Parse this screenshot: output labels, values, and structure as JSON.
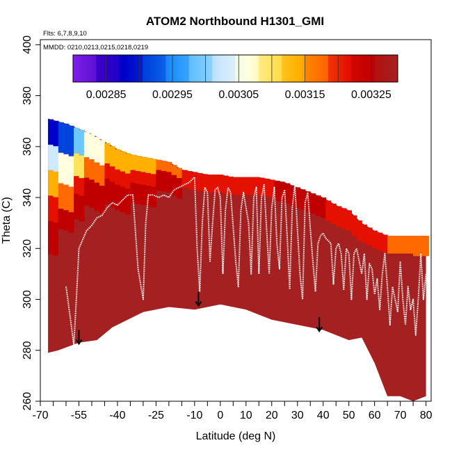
{
  "chart_data": {
    "type": "heatmap",
    "title": "ATOM2 Northbound H1301_GMI",
    "flights_label": "Flts: 6,7,8,9,10",
    "dates_label": "MMDD: 0210,0213,0215,0218,0219",
    "xlabel": "Latitude (deg N)",
    "ylabel": "Theta (C)",
    "xlim": [
      -70,
      82
    ],
    "ylim": [
      260,
      402
    ],
    "x_tick_labels": [
      "-70",
      "-55",
      "-40",
      "-25",
      "-10",
      "0",
      "10",
      "20",
      "30",
      "40",
      "50",
      "60",
      "70",
      "80"
    ],
    "x_tick_positions": [
      -70,
      -55,
      -40,
      -25,
      -10,
      0,
      10,
      20,
      30,
      40,
      50,
      60,
      70,
      80
    ],
    "x_minor_ticks": [
      -65,
      -60,
      -50,
      -45,
      -35,
      -30,
      -20,
      -15,
      -5,
      5,
      15,
      25,
      35,
      45,
      55,
      65,
      75
    ],
    "y_ticks": [
      260,
      280,
      300,
      320,
      340,
      360,
      380,
      400
    ],
    "colorbar": {
      "range": [
        0.0028,
        0.00329
      ],
      "tick_values": [
        0.00285,
        0.00295,
        0.00305,
        0.00315,
        0.00325
      ],
      "tick_labels": [
        "0.00285",
        "0.00295",
        "0.00305",
        "0.00315",
        "0.00325"
      ],
      "boundaries": [
        0.00285,
        0.0029,
        0.00295,
        0.003,
        0.00305,
        0.0031,
        0.00315,
        0.0032,
        0.00325
      ],
      "colors": [
        "#7f1fe6",
        "#3a00c8",
        "#0000c8",
        "#0044dd",
        "#1e90ff",
        "#6ec6ff",
        "#cfe9ff",
        "#ffffe0",
        "#ffe35c",
        "#ffb000",
        "#ff6a00",
        "#e41000",
        "#c00000",
        "#a52020"
      ]
    },
    "field": {
      "top_boundary": [
        [
          -67,
          371
        ],
        [
          -60,
          369
        ],
        [
          -55,
          367
        ],
        [
          -50,
          365
        ],
        [
          -45,
          362
        ],
        [
          -40,
          359
        ],
        [
          -35,
          357
        ],
        [
          -30,
          356
        ],
        [
          -25,
          355
        ],
        [
          -20,
          354
        ],
        [
          -15,
          351
        ],
        [
          -10,
          350
        ],
        [
          -5,
          349
        ],
        [
          0,
          349
        ],
        [
          5,
          348
        ],
        [
          10,
          348
        ],
        [
          15,
          348
        ],
        [
          20,
          347
        ],
        [
          25,
          346
        ],
        [
          30,
          344
        ],
        [
          35,
          342
        ],
        [
          40,
          340
        ],
        [
          45,
          337
        ],
        [
          50,
          335
        ],
        [
          55,
          330
        ],
        [
          60,
          327
        ],
        [
          65,
          325
        ],
        [
          70,
          325
        ],
        [
          75,
          325
        ],
        [
          80,
          325
        ]
      ],
      "bottom_boundary": [
        [
          -67,
          279
        ],
        [
          -63,
          280
        ],
        [
          -55,
          283
        ],
        [
          -48,
          284
        ],
        [
          -42,
          289
        ],
        [
          -30,
          295
        ],
        [
          -20,
          297
        ],
        [
          -10,
          296
        ],
        [
          0,
          298
        ],
        [
          10,
          296
        ],
        [
          20,
          292
        ],
        [
          30,
          290
        ],
        [
          40,
          288
        ],
        [
          50,
          284
        ],
        [
          55,
          285
        ],
        [
          60,
          275
        ],
        [
          65,
          262
        ],
        [
          70,
          262
        ],
        [
          75,
          260
        ],
        [
          80,
          262
        ]
      ],
      "values_by_latitude": [
        {
          "lat": -65,
          "layers": [
            [
              367,
              0.00283
            ],
            [
              357,
              0.0029
            ],
            [
              347,
              0.00303
            ],
            [
              337,
              0.00313
            ],
            [
              327,
              0.0032
            ],
            [
              318,
              0.00324
            ]
          ]
        },
        {
          "lat": -60,
          "layers": [
            [
              367,
              0.00284
            ],
            [
              355,
              0.00293
            ],
            [
              343,
              0.00307
            ],
            [
              333,
              0.00316
            ],
            [
              325,
              0.00322
            ],
            [
              318,
              0.00326
            ]
          ]
        },
        {
          "lat": -55,
          "layers": [
            [
              362,
              0.00293
            ],
            [
              352,
              0.003
            ],
            [
              343,
              0.0031
            ],
            [
              336,
              0.0032
            ],
            [
              330,
              0.00325
            ]
          ]
        },
        {
          "lat": -50,
          "layers": [
            [
              362,
              0.00298
            ],
            [
              352,
              0.00306
            ],
            [
              344,
              0.00316
            ],
            [
              337,
              0.00323
            ]
          ]
        },
        {
          "lat": -40,
          "layers": [
            [
              358,
              0.00302
            ],
            [
              350,
              0.00312
            ],
            [
              344,
              0.00319
            ],
            [
              338,
              0.00324
            ]
          ]
        },
        {
          "lat": -30,
          "layers": [
            [
              355,
              0.00305
            ],
            [
              349,
              0.00314
            ],
            [
              344,
              0.0032
            ],
            [
              340,
              0.00325
            ]
          ]
        },
        {
          "lat": -20,
          "layers": [
            [
              352,
              0.0031
            ],
            [
              348,
              0.00316
            ],
            [
              344,
              0.00322
            ]
          ]
        },
        {
          "lat": -10,
          "layers": [
            [
              349,
              0.00314
            ],
            [
              346,
              0.0032
            ]
          ]
        },
        {
          "lat": 10,
          "layers": [
            [
              348,
              0.00316
            ],
            [
              345,
              0.00321
            ]
          ]
        },
        {
          "lat": 30,
          "layers": [
            [
              343,
              0.00318
            ],
            [
              339,
              0.00322
            ]
          ]
        },
        {
          "lat": 50,
          "layers": [
            [
              334,
              0.00316
            ],
            [
              330,
              0.00321
            ]
          ]
        },
        {
          "lat": 60,
          "layers": [
            [
              326,
              0.00315
            ],
            [
              323,
              0.00319
            ]
          ]
        },
        {
          "lat": 70,
          "layers": [
            [
              324,
              0.00312
            ],
            [
              321,
              0.00318
            ]
          ]
        },
        {
          "lat": 78,
          "layers": [
            [
              324,
              0.00309
            ],
            [
              320,
              0.00316
            ]
          ]
        }
      ]
    },
    "tropopause_trace": [
      [
        -60,
        305
      ],
      [
        -58,
        290
      ],
      [
        -57,
        282
      ],
      [
        -56,
        300
      ],
      [
        -55,
        320
      ],
      [
        -52,
        327
      ],
      [
        -50,
        329
      ],
      [
        -48,
        332
      ],
      [
        -46,
        333
      ],
      [
        -44,
        336
      ],
      [
        -42,
        338
      ],
      [
        -40,
        337
      ],
      [
        -38,
        339
      ],
      [
        -36,
        341
      ],
      [
        -34,
        341
      ],
      [
        -32,
        312
      ],
      [
        -30,
        300
      ],
      [
        -29,
        330
      ],
      [
        -28,
        341
      ],
      [
        -26,
        341
      ],
      [
        -24,
        340
      ],
      [
        -22,
        341
      ],
      [
        -20,
        340
      ],
      [
        -18,
        343
      ],
      [
        -16,
        344
      ],
      [
        -14,
        345
      ],
      [
        -12,
        346
      ],
      [
        -11,
        347
      ],
      [
        -10,
        348
      ],
      [
        -9,
        320
      ],
      [
        -8,
        303
      ],
      [
        -7,
        330
      ],
      [
        -6,
        344
      ],
      [
        -5,
        342
      ],
      [
        -4,
        315
      ],
      [
        -3,
        330
      ],
      [
        -2,
        343
      ],
      [
        -1,
        344
      ],
      [
        0,
        340
      ],
      [
        1,
        310
      ],
      [
        2,
        335
      ],
      [
        3,
        344
      ],
      [
        4,
        342
      ],
      [
        6,
        315
      ],
      [
        7,
        305
      ],
      [
        8,
        335
      ],
      [
        9,
        342
      ],
      [
        11,
        330
      ],
      [
        12,
        310
      ],
      [
        13,
        340
      ],
      [
        14,
        344
      ],
      [
        15,
        310
      ],
      [
        16,
        340
      ],
      [
        17,
        345
      ],
      [
        19,
        310
      ],
      [
        20,
        336
      ],
      [
        21,
        344
      ],
      [
        22,
        322
      ],
      [
        23,
        312
      ],
      [
        24,
        340
      ],
      [
        25,
        343
      ],
      [
        26,
        325
      ],
      [
        27,
        304
      ],
      [
        28,
        336
      ],
      [
        29,
        345
      ],
      [
        31,
        310
      ],
      [
        32,
        300
      ],
      [
        33,
        338
      ],
      [
        34,
        342
      ],
      [
        35,
        328
      ],
      [
        36,
        315
      ],
      [
        37,
        303
      ],
      [
        38,
        322
      ],
      [
        39,
        325
      ],
      [
        40,
        326
      ],
      [
        41,
        324
      ],
      [
        42,
        323
      ],
      [
        43,
        322
      ],
      [
        44,
        306
      ],
      [
        45,
        320
      ],
      [
        46,
        322
      ],
      [
        47,
        318
      ],
      [
        48,
        304
      ],
      [
        49,
        320
      ],
      [
        50,
        318
      ],
      [
        51,
        300
      ],
      [
        52,
        318
      ],
      [
        53,
        320
      ],
      [
        54,
        315
      ],
      [
        55,
        310
      ],
      [
        56,
        318
      ],
      [
        57,
        300
      ],
      [
        58,
        314
      ],
      [
        59,
        312
      ],
      [
        60,
        302
      ],
      [
        61,
        308
      ],
      [
        62,
        296
      ],
      [
        63,
        310
      ],
      [
        64,
        318
      ],
      [
        65,
        305
      ],
      [
        66,
        290
      ],
      [
        67,
        305
      ],
      [
        68,
        300
      ],
      [
        69,
        295
      ],
      [
        70,
        315
      ],
      [
        71,
        300
      ],
      [
        72,
        290
      ],
      [
        73,
        305
      ],
      [
        74,
        296
      ],
      [
        75,
        300
      ],
      [
        76,
        286
      ],
      [
        77,
        300
      ],
      [
        78,
        318
      ],
      [
        79,
        300
      ],
      [
        80,
        310
      ]
    ],
    "arrows": [
      [
        -55,
        288
      ],
      [
        -8.5,
        303
      ],
      [
        38.5,
        293
      ]
    ]
  }
}
